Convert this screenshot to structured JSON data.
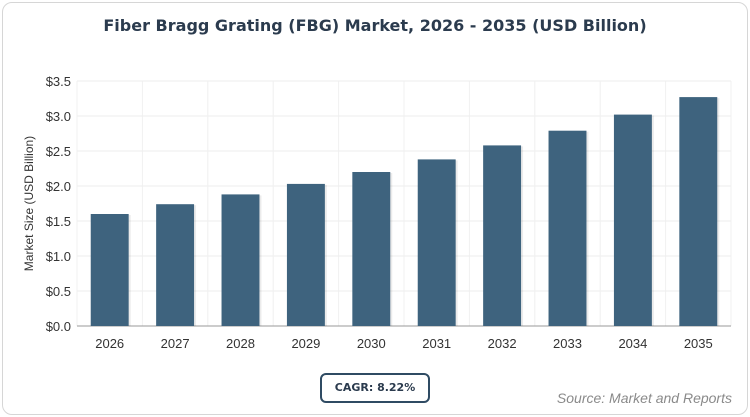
{
  "chart_data": {
    "type": "bar",
    "title": "Fiber Bragg Grating (FBG) Market, 2026 - 2035 (USD Billion)",
    "xlabel": "",
    "ylabel": "Market Size (USD Billion)",
    "categories": [
      "2026",
      "2027",
      "2028",
      "2029",
      "2030",
      "2031",
      "2032",
      "2033",
      "2034",
      "2035"
    ],
    "values": [
      1.6,
      1.74,
      1.88,
      2.03,
      2.2,
      2.38,
      2.58,
      2.79,
      3.02,
      3.27
    ],
    "ylim": [
      0,
      3.5
    ],
    "yticks": [
      0,
      0.5,
      1.0,
      1.5,
      2.0,
      2.5,
      3.0,
      3.5
    ],
    "ytick_labels": [
      "$0.0",
      "$0.5",
      "$1.0",
      "$1.5",
      "$2.0",
      "$2.5",
      "$3.0",
      "$3.5"
    ],
    "grid": true,
    "bar_color": "#3e637e"
  },
  "cagr_label": "CAGR: 8.22%",
  "source": "Source: Market and Reports"
}
